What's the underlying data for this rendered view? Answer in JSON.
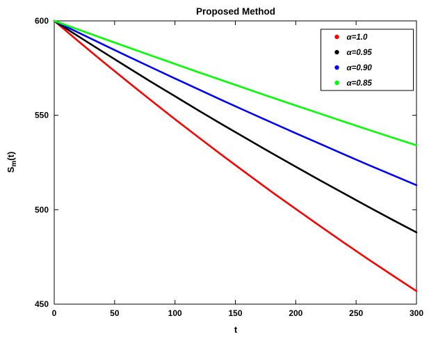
{
  "chart_data": {
    "type": "line",
    "title": "Proposed Method",
    "xlabel": "t",
    "ylabel": "S_m(t)",
    "xlim": [
      0,
      300
    ],
    "ylim": [
      450,
      600
    ],
    "xticks": [
      0,
      50,
      100,
      150,
      200,
      250,
      300
    ],
    "yticks": [
      450,
      500,
      550,
      600
    ],
    "grid": false,
    "legend_position": "top-right",
    "axis_color": "#000000",
    "background_color": "#ffffff",
    "x": [
      0,
      20,
      40,
      60,
      80,
      100,
      120,
      140,
      160,
      180,
      200,
      220,
      240,
      260,
      280,
      300
    ],
    "series": [
      {
        "name": "α=1.0",
        "color": "#FF0000",
        "values": [
          600,
          589.2,
          578.6,
          568.2,
          558.0,
          547.9,
          538.1,
          528.4,
          518.9,
          509.5,
          500.4,
          491.4,
          482.5,
          473.8,
          465.3,
          456.9
        ]
      },
      {
        "name": "α=0.95",
        "color": "#000000",
        "values": [
          600,
          591.8,
          583.7,
          575.7,
          567.8,
          560.1,
          552.4,
          544.8,
          537.4,
          530.0,
          522.8,
          515.6,
          508.6,
          501.6,
          494.7,
          488.0
        ]
      },
      {
        "name": "α=0.90",
        "color": "#0000FF",
        "values": [
          600,
          593.8,
          587.6,
          581.5,
          575.5,
          569.5,
          563.6,
          557.7,
          551.9,
          546.2,
          540.5,
          534.9,
          529.3,
          523.8,
          518.4,
          513.0
        ]
      },
      {
        "name": "α=0.85",
        "color": "#00FF00",
        "values": [
          600,
          595.4,
          590.8,
          586.2,
          581.7,
          577.2,
          572.7,
          568.3,
          563.9,
          559.5,
          555.2,
          550.9,
          546.6,
          542.4,
          538.2,
          534.1
        ]
      }
    ]
  }
}
